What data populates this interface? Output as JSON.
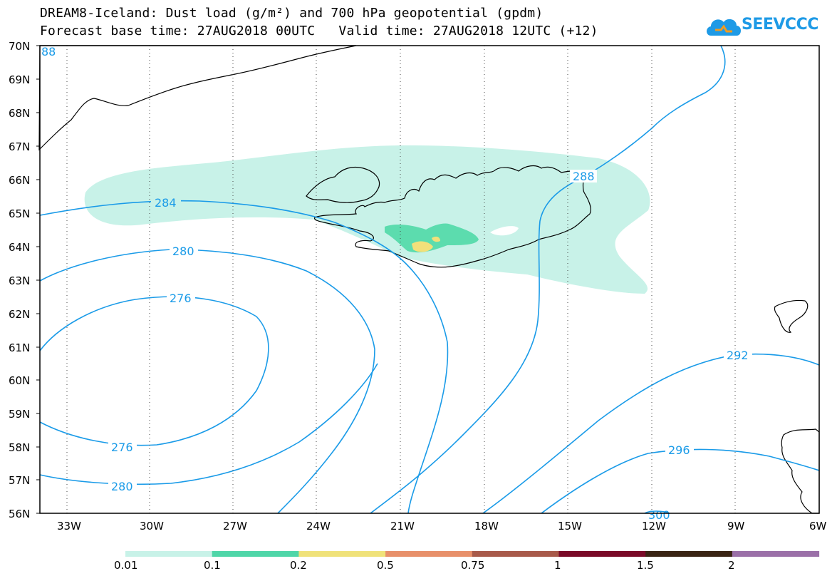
{
  "title": {
    "line1": "DREAM8-Iceland: Dust load (g/m²) and 700 hPa geopotential (gpdm)",
    "line2": "Forecast base time: 27AUG2018 00UTC   Valid time: 27AUG2018 12UTC (+12)"
  },
  "logo": {
    "text": "SEEVCCC",
    "icon": "cloud-icon"
  },
  "map": {
    "lat_labels": [
      "70N",
      "69N",
      "68N",
      "67N",
      "66N",
      "65N",
      "64N",
      "63N",
      "62N",
      "61N",
      "60N",
      "59N",
      "58N",
      "57N",
      "56N"
    ],
    "lon_labels": [
      "33W",
      "30W",
      "27W",
      "24W",
      "21W",
      "18W",
      "15W",
      "12W",
      "9W",
      "6W"
    ],
    "contour_labels": [
      "284",
      "280",
      "276",
      "276",
      "280",
      "288",
      "292",
      "296",
      "300",
      "88"
    ]
  },
  "colorbar": {
    "colors": [
      "#c8f2e8",
      "#4fd6a8",
      "#f0e27a",
      "#e8906a",
      "#a85a4a",
      "#7a0a28",
      "#3a2414",
      "#9b70a8"
    ],
    "labels": [
      "0.01",
      "0.1",
      "0.2",
      "0.5",
      "0.75",
      "1",
      "1.5",
      "2"
    ]
  },
  "colors": {
    "contour": "#1a9be8",
    "dust_low": "#c8f2e8",
    "dust_mid": "#5cdcae",
    "dust_high": "#f2e07a"
  }
}
